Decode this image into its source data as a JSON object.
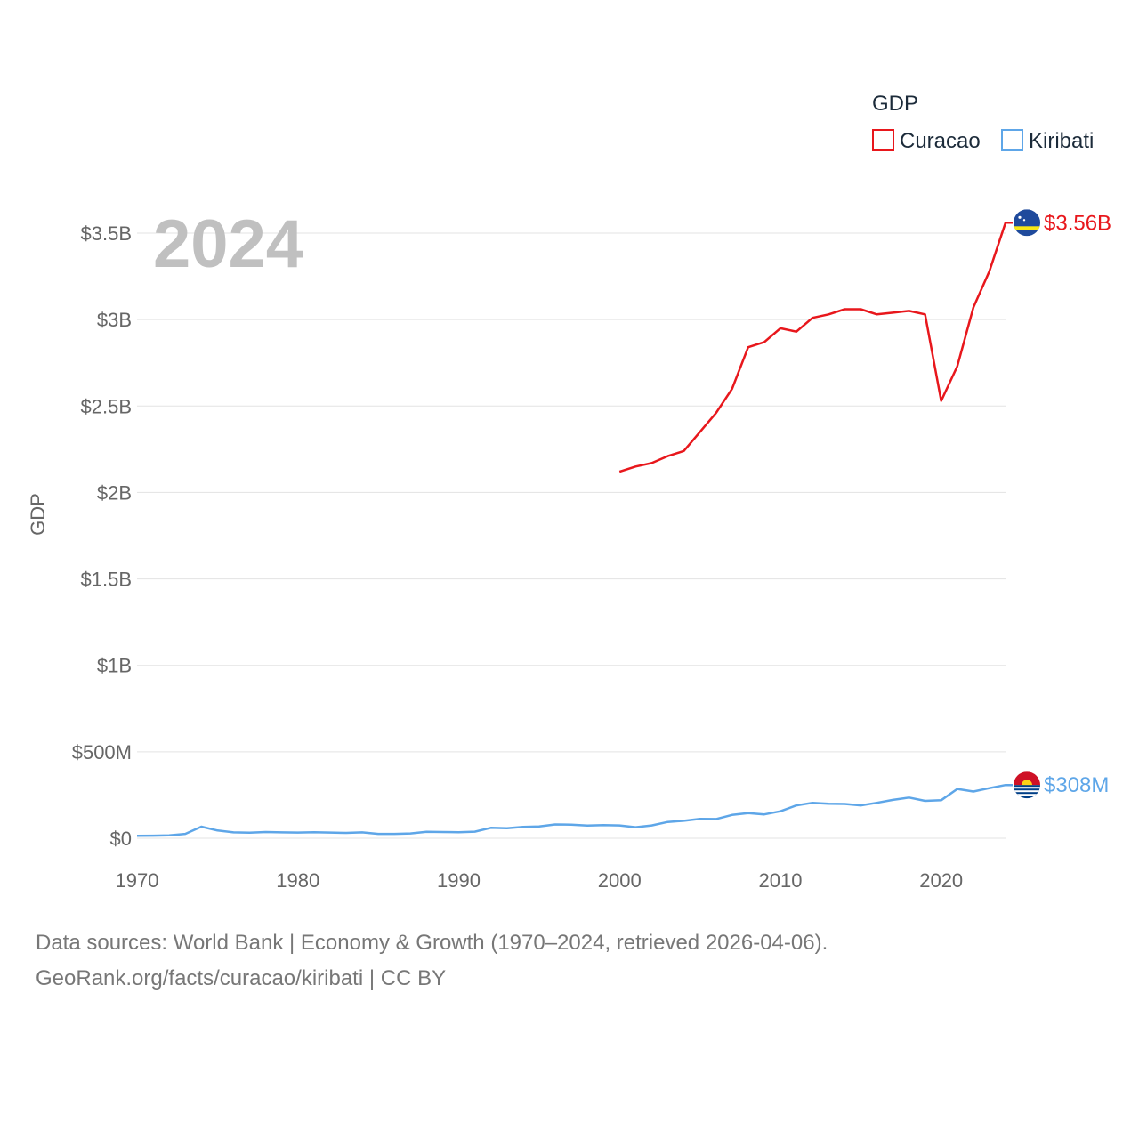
{
  "chart_data": {
    "type": "line",
    "ylabel": "GDP",
    "year_label": "2024",
    "legend": {
      "title": "GDP",
      "placement": "top-right"
    },
    "xlim": [
      1970,
      2024
    ],
    "ylim": [
      0,
      3.75
    ],
    "y_unit": "billions USD",
    "x_ticks": [
      1970,
      1980,
      1990,
      2000,
      2010,
      2020
    ],
    "y_ticks": [
      {
        "value": 0,
        "label": "$0"
      },
      {
        "value": 0.5,
        "label": "$500M"
      },
      {
        "value": 1,
        "label": "$1B"
      },
      {
        "value": 1.5,
        "label": "$1.5B"
      },
      {
        "value": 2,
        "label": "$2B"
      },
      {
        "value": 2.5,
        "label": "$2.5B"
      },
      {
        "value": 3,
        "label": "$3B"
      },
      {
        "value": 3.5,
        "label": "$3.5B"
      }
    ],
    "series": [
      {
        "name": "Curacao",
        "color": "#e8171c",
        "end_label": "$3.56B",
        "flag_icon": "curacao-flag-icon",
        "x": [
          2000,
          2001,
          2002,
          2003,
          2004,
          2005,
          2006,
          2007,
          2008,
          2009,
          2010,
          2011,
          2012,
          2013,
          2014,
          2015,
          2016,
          2017,
          2018,
          2019,
          2020,
          2021,
          2022,
          2023,
          2024
        ],
        "values": [
          2.12,
          2.15,
          2.17,
          2.21,
          2.24,
          2.35,
          2.46,
          2.6,
          2.84,
          2.87,
          2.95,
          2.93,
          3.01,
          3.03,
          3.06,
          3.06,
          3.03,
          3.04,
          3.05,
          3.03,
          2.53,
          2.73,
          3.07,
          3.28,
          3.56
        ]
      },
      {
        "name": "Kiribati",
        "color": "#5ea6e8",
        "end_label": "$308M",
        "flag_icon": "kiribati-flag-icon",
        "x": [
          1970,
          1971,
          1972,
          1973,
          1974,
          1975,
          1976,
          1977,
          1978,
          1979,
          1980,
          1981,
          1982,
          1983,
          1984,
          1985,
          1986,
          1987,
          1988,
          1989,
          1990,
          1991,
          1992,
          1993,
          1994,
          1995,
          1996,
          1997,
          1998,
          1999,
          2000,
          2001,
          2002,
          2003,
          2004,
          2005,
          2006,
          2007,
          2008,
          2009,
          2010,
          2011,
          2012,
          2013,
          2014,
          2015,
          2016,
          2017,
          2018,
          2019,
          2020,
          2021,
          2022,
          2023,
          2024
        ],
        "values": [
          0.014,
          0.015,
          0.017,
          0.025,
          0.067,
          0.045,
          0.034,
          0.032,
          0.036,
          0.034,
          0.033,
          0.035,
          0.033,
          0.031,
          0.034,
          0.025,
          0.025,
          0.028,
          0.037,
          0.036,
          0.035,
          0.038,
          0.06,
          0.058,
          0.066,
          0.068,
          0.08,
          0.079,
          0.073,
          0.076,
          0.074,
          0.064,
          0.074,
          0.094,
          0.101,
          0.112,
          0.111,
          0.135,
          0.145,
          0.138,
          0.156,
          0.19,
          0.205,
          0.199,
          0.198,
          0.19,
          0.205,
          0.222,
          0.235,
          0.216,
          0.22,
          0.285,
          0.27,
          0.29,
          0.308
        ]
      }
    ]
  },
  "footer": {
    "line1": "Data sources: World Bank | Economy & Growth (1970–2024, retrieved 2026-04-06).",
    "line2": "GeoRank.org/facts/curacao/kiribati | CC BY"
  }
}
